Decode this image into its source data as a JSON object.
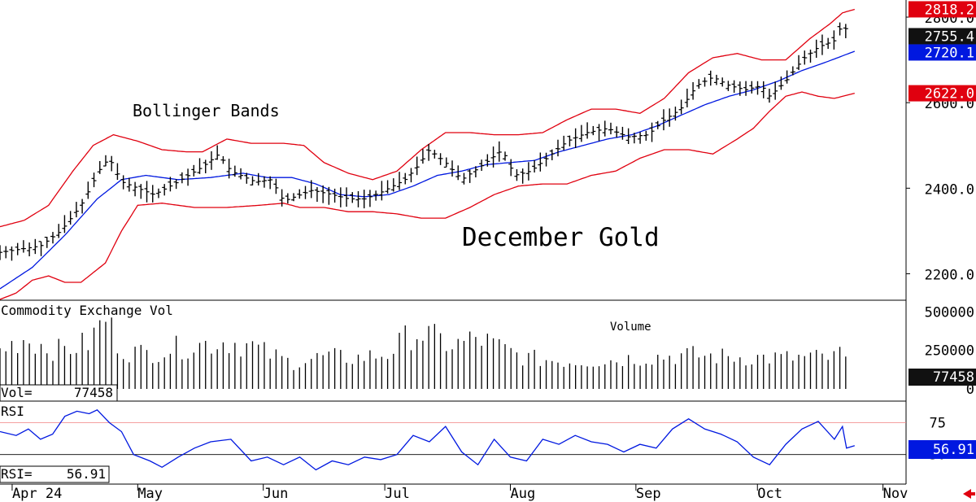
{
  "chart_data": {
    "type": "ohlc",
    "title": "December Gold",
    "annotation": "Bollinger Bands",
    "x_months": [
      {
        "label": "Apr 24",
        "day": 3
      },
      {
        "label": "May",
        "day": 34
      },
      {
        "label": "Jun",
        "day": 65
      },
      {
        "label": "Jul",
        "day": 95
      },
      {
        "label": "Aug",
        "day": 126
      },
      {
        "label": "Sep",
        "day": 157
      },
      {
        "label": "Oct",
        "day": 187
      },
      {
        "label": "Nov",
        "day": 218
      }
    ],
    "price_axis": {
      "ticks": [
        "2200.0",
        "2400.0",
        "2600.0",
        "2800.0"
      ],
      "tick_values": [
        2200,
        2400,
        2600,
        2800
      ],
      "ylim": [
        2140,
        2840
      ]
    },
    "price_labels": {
      "upper": "2818.2",
      "last": "2755.4",
      "middle": "2720.1",
      "lower": "2622.0"
    },
    "price_label_values": {
      "upper": 2818.2,
      "last": 2755.4,
      "middle": 2720.1,
      "lower": 2622.0
    },
    "colors": {
      "upper_band": "#e0000f",
      "lower_band": "#e0000f",
      "middle_band": "#0018e0",
      "bars": "#000000",
      "rsi_line": "#0018e0",
      "rsi_guide": "#f08080",
      "last_box": "#111111",
      "rsi_box": "#0018e0",
      "arrow": "#e0000f"
    },
    "price_points": [
      {
        "x": 0,
        "y": 2250
      },
      {
        "x": 10,
        "y": 2265
      },
      {
        "x": 15,
        "y": 2300
      },
      {
        "x": 20,
        "y": 2360
      },
      {
        "x": 25,
        "y": 2450
      },
      {
        "x": 27,
        "y": 2470
      },
      {
        "x": 30,
        "y": 2415
      },
      {
        "x": 34,
        "y": 2400
      },
      {
        "x": 38,
        "y": 2385
      },
      {
        "x": 43,
        "y": 2410
      },
      {
        "x": 50,
        "y": 2450
      },
      {
        "x": 54,
        "y": 2480
      },
      {
        "x": 57,
        "y": 2440
      },
      {
        "x": 63,
        "y": 2415
      },
      {
        "x": 67,
        "y": 2420
      },
      {
        "x": 70,
        "y": 2370
      },
      {
        "x": 77,
        "y": 2395
      },
      {
        "x": 82,
        "y": 2385
      },
      {
        "x": 86,
        "y": 2375
      },
      {
        "x": 90,
        "y": 2375
      },
      {
        "x": 94,
        "y": 2390
      },
      {
        "x": 100,
        "y": 2420
      },
      {
        "x": 103,
        "y": 2450
      },
      {
        "x": 106,
        "y": 2490
      },
      {
        "x": 110,
        "y": 2460
      },
      {
        "x": 114,
        "y": 2420
      },
      {
        "x": 120,
        "y": 2460
      },
      {
        "x": 124,
        "y": 2490
      },
      {
        "x": 127,
        "y": 2430
      },
      {
        "x": 131,
        "y": 2440
      },
      {
        "x": 135,
        "y": 2470
      },
      {
        "x": 140,
        "y": 2510
      },
      {
        "x": 145,
        "y": 2530
      },
      {
        "x": 150,
        "y": 2540
      },
      {
        "x": 155,
        "y": 2520
      },
      {
        "x": 160,
        "y": 2525
      },
      {
        "x": 164,
        "y": 2560
      },
      {
        "x": 168,
        "y": 2585
      },
      {
        "x": 172,
        "y": 2640
      },
      {
        "x": 176,
        "y": 2660
      },
      {
        "x": 180,
        "y": 2640
      },
      {
        "x": 184,
        "y": 2630
      },
      {
        "x": 188,
        "y": 2640
      },
      {
        "x": 190,
        "y": 2615
      },
      {
        "x": 194,
        "y": 2650
      },
      {
        "x": 198,
        "y": 2700
      },
      {
        "x": 202,
        "y": 2730
      },
      {
        "x": 206,
        "y": 2745
      },
      {
        "x": 208,
        "y": 2785
      },
      {
        "x": 210,
        "y": 2755
      }
    ],
    "upper_band": [
      {
        "x": 0,
        "y": 2310
      },
      {
        "x": 6,
        "y": 2325
      },
      {
        "x": 12,
        "y": 2360
      },
      {
        "x": 18,
        "y": 2440
      },
      {
        "x": 23,
        "y": 2500
      },
      {
        "x": 28,
        "y": 2525
      },
      {
        "x": 34,
        "y": 2510
      },
      {
        "x": 40,
        "y": 2490
      },
      {
        "x": 46,
        "y": 2485
      },
      {
        "x": 50,
        "y": 2485
      },
      {
        "x": 56,
        "y": 2515
      },
      {
        "x": 62,
        "y": 2505
      },
      {
        "x": 70,
        "y": 2505
      },
      {
        "x": 75,
        "y": 2500
      },
      {
        "x": 80,
        "y": 2460
      },
      {
        "x": 86,
        "y": 2435
      },
      {
        "x": 92,
        "y": 2420
      },
      {
        "x": 98,
        "y": 2440
      },
      {
        "x": 104,
        "y": 2490
      },
      {
        "x": 110,
        "y": 2530
      },
      {
        "x": 116,
        "y": 2530
      },
      {
        "x": 122,
        "y": 2525
      },
      {
        "x": 128,
        "y": 2525
      },
      {
        "x": 134,
        "y": 2530
      },
      {
        "x": 140,
        "y": 2560
      },
      {
        "x": 146,
        "y": 2585
      },
      {
        "x": 152,
        "y": 2585
      },
      {
        "x": 158,
        "y": 2575
      },
      {
        "x": 164,
        "y": 2610
      },
      {
        "x": 170,
        "y": 2670
      },
      {
        "x": 176,
        "y": 2705
      },
      {
        "x": 182,
        "y": 2715
      },
      {
        "x": 188,
        "y": 2700
      },
      {
        "x": 194,
        "y": 2700
      },
      {
        "x": 200,
        "y": 2750
      },
      {
        "x": 205,
        "y": 2785
      },
      {
        "x": 208,
        "y": 2810
      },
      {
        "x": 211,
        "y": 2818.2
      }
    ],
    "middle_band": [
      {
        "x": 0,
        "y": 2165
      },
      {
        "x": 8,
        "y": 2215
      },
      {
        "x": 16,
        "y": 2290
      },
      {
        "x": 24,
        "y": 2375
      },
      {
        "x": 30,
        "y": 2420
      },
      {
        "x": 36,
        "y": 2430
      },
      {
        "x": 44,
        "y": 2420
      },
      {
        "x": 52,
        "y": 2425
      },
      {
        "x": 60,
        "y": 2435
      },
      {
        "x": 66,
        "y": 2425
      },
      {
        "x": 72,
        "y": 2425
      },
      {
        "x": 78,
        "y": 2410
      },
      {
        "x": 84,
        "y": 2385
      },
      {
        "x": 90,
        "y": 2380
      },
      {
        "x": 96,
        "y": 2385
      },
      {
        "x": 102,
        "y": 2405
      },
      {
        "x": 108,
        "y": 2430
      },
      {
        "x": 114,
        "y": 2440
      },
      {
        "x": 120,
        "y": 2455
      },
      {
        "x": 126,
        "y": 2460
      },
      {
        "x": 132,
        "y": 2465
      },
      {
        "x": 138,
        "y": 2485
      },
      {
        "x": 144,
        "y": 2500
      },
      {
        "x": 150,
        "y": 2515
      },
      {
        "x": 156,
        "y": 2525
      },
      {
        "x": 162,
        "y": 2545
      },
      {
        "x": 168,
        "y": 2570
      },
      {
        "x": 174,
        "y": 2595
      },
      {
        "x": 180,
        "y": 2615
      },
      {
        "x": 186,
        "y": 2630
      },
      {
        "x": 192,
        "y": 2650
      },
      {
        "x": 198,
        "y": 2675
      },
      {
        "x": 204,
        "y": 2695
      },
      {
        "x": 211,
        "y": 2720.1
      }
    ],
    "lower_band": [
      {
        "x": 0,
        "y": 2140
      },
      {
        "x": 4,
        "y": 2155
      },
      {
        "x": 8,
        "y": 2185
      },
      {
        "x": 12,
        "y": 2195
      },
      {
        "x": 16,
        "y": 2180
      },
      {
        "x": 20,
        "y": 2180
      },
      {
        "x": 26,
        "y": 2225
      },
      {
        "x": 30,
        "y": 2300
      },
      {
        "x": 34,
        "y": 2360
      },
      {
        "x": 40,
        "y": 2365
      },
      {
        "x": 48,
        "y": 2355
      },
      {
        "x": 56,
        "y": 2355
      },
      {
        "x": 64,
        "y": 2360
      },
      {
        "x": 70,
        "y": 2365
      },
      {
        "x": 74,
        "y": 2355
      },
      {
        "x": 80,
        "y": 2355
      },
      {
        "x": 86,
        "y": 2345
      },
      {
        "x": 92,
        "y": 2345
      },
      {
        "x": 98,
        "y": 2340
      },
      {
        "x": 104,
        "y": 2330
      },
      {
        "x": 110,
        "y": 2330
      },
      {
        "x": 116,
        "y": 2355
      },
      {
        "x": 122,
        "y": 2385
      },
      {
        "x": 128,
        "y": 2405
      },
      {
        "x": 134,
        "y": 2410
      },
      {
        "x": 140,
        "y": 2410
      },
      {
        "x": 146,
        "y": 2430
      },
      {
        "x": 152,
        "y": 2440
      },
      {
        "x": 158,
        "y": 2470
      },
      {
        "x": 164,
        "y": 2490
      },
      {
        "x": 170,
        "y": 2490
      },
      {
        "x": 176,
        "y": 2480
      },
      {
        "x": 182,
        "y": 2515
      },
      {
        "x": 186,
        "y": 2540
      },
      {
        "x": 190,
        "y": 2580
      },
      {
        "x": 194,
        "y": 2615
      },
      {
        "x": 198,
        "y": 2625
      },
      {
        "x": 202,
        "y": 2615
      },
      {
        "x": 206,
        "y": 2610
      },
      {
        "x": 211,
        "y": 2622
      }
    ],
    "volume": {
      "title": "Commodity Exchange Vol",
      "label": "Volume",
      "ticks": [
        "500000",
        "250000",
        "0"
      ],
      "tick_values": [
        500000,
        250000,
        0
      ],
      "ylim": [
        0,
        560000
      ],
      "readout_label": "Vol=",
      "last": "77458",
      "points": [
        {
          "x": 0,
          "y": 250000
        },
        {
          "x": 6,
          "y": 330000
        },
        {
          "x": 10,
          "y": 290000
        },
        {
          "x": 14,
          "y": 250000
        },
        {
          "x": 18,
          "y": 270000
        },
        {
          "x": 22,
          "y": 300000
        },
        {
          "x": 26,
          "y": 470000
        },
        {
          "x": 30,
          "y": 250000
        },
        {
          "x": 36,
          "y": 230000
        },
        {
          "x": 42,
          "y": 260000
        },
        {
          "x": 50,
          "y": 290000
        },
        {
          "x": 56,
          "y": 310000
        },
        {
          "x": 62,
          "y": 280000
        },
        {
          "x": 66,
          "y": 230000
        },
        {
          "x": 72,
          "y": 170000
        },
        {
          "x": 80,
          "y": 210000
        },
        {
          "x": 88,
          "y": 200000
        },
        {
          "x": 96,
          "y": 230000
        },
        {
          "x": 102,
          "y": 370000
        },
        {
          "x": 106,
          "y": 340000
        },
        {
          "x": 112,
          "y": 280000
        },
        {
          "x": 118,
          "y": 330000
        },
        {
          "x": 124,
          "y": 260000
        },
        {
          "x": 130,
          "y": 200000
        },
        {
          "x": 140,
          "y": 180000
        },
        {
          "x": 150,
          "y": 185000
        },
        {
          "x": 156,
          "y": 200000
        },
        {
          "x": 162,
          "y": 210000
        },
        {
          "x": 170,
          "y": 220000
        },
        {
          "x": 178,
          "y": 210000
        },
        {
          "x": 186,
          "y": 205000
        },
        {
          "x": 194,
          "y": 200000
        },
        {
          "x": 200,
          "y": 205000
        },
        {
          "x": 206,
          "y": 200000
        },
        {
          "x": 208,
          "y": 260000
        },
        {
          "x": 210,
          "y": 77458
        }
      ]
    },
    "rsi": {
      "title": "RSI",
      "ticks": [
        "75",
        "50"
      ],
      "tick_values": [
        75,
        50
      ],
      "ylim": [
        30,
        90
      ],
      "readout_label": "RSI=",
      "last": "56.91",
      "points": [
        {
          "x": 0,
          "y": 68
        },
        {
          "x": 4,
          "y": 65
        },
        {
          "x": 7,
          "y": 70
        },
        {
          "x": 10,
          "y": 62
        },
        {
          "x": 13,
          "y": 66
        },
        {
          "x": 16,
          "y": 80
        },
        {
          "x": 19,
          "y": 84
        },
        {
          "x": 22,
          "y": 82
        },
        {
          "x": 24,
          "y": 85
        },
        {
          "x": 27,
          "y": 75
        },
        {
          "x": 30,
          "y": 68
        },
        {
          "x": 33,
          "y": 50
        },
        {
          "x": 37,
          "y": 45
        },
        {
          "x": 40,
          "y": 40
        },
        {
          "x": 44,
          "y": 48
        },
        {
          "x": 48,
          "y": 55
        },
        {
          "x": 52,
          "y": 60
        },
        {
          "x": 57,
          "y": 62
        },
        {
          "x": 62,
          "y": 45
        },
        {
          "x": 66,
          "y": 48
        },
        {
          "x": 70,
          "y": 42
        },
        {
          "x": 74,
          "y": 48
        },
        {
          "x": 78,
          "y": 38
        },
        {
          "x": 82,
          "y": 45
        },
        {
          "x": 86,
          "y": 42
        },
        {
          "x": 90,
          "y": 48
        },
        {
          "x": 94,
          "y": 46
        },
        {
          "x": 98,
          "y": 50
        },
        {
          "x": 102,
          "y": 65
        },
        {
          "x": 106,
          "y": 60
        },
        {
          "x": 110,
          "y": 72
        },
        {
          "x": 114,
          "y": 52
        },
        {
          "x": 118,
          "y": 42
        },
        {
          "x": 122,
          "y": 62
        },
        {
          "x": 126,
          "y": 48
        },
        {
          "x": 130,
          "y": 45
        },
        {
          "x": 134,
          "y": 62
        },
        {
          "x": 138,
          "y": 58
        },
        {
          "x": 142,
          "y": 65
        },
        {
          "x": 146,
          "y": 60
        },
        {
          "x": 150,
          "y": 58
        },
        {
          "x": 154,
          "y": 52
        },
        {
          "x": 158,
          "y": 58
        },
        {
          "x": 162,
          "y": 55
        },
        {
          "x": 166,
          "y": 70
        },
        {
          "x": 170,
          "y": 78
        },
        {
          "x": 174,
          "y": 70
        },
        {
          "x": 178,
          "y": 66
        },
        {
          "x": 182,
          "y": 60
        },
        {
          "x": 186,
          "y": 48
        },
        {
          "x": 190,
          "y": 42
        },
        {
          "x": 194,
          "y": 58
        },
        {
          "x": 198,
          "y": 70
        },
        {
          "x": 202,
          "y": 76
        },
        {
          "x": 206,
          "y": 62
        },
        {
          "x": 208,
          "y": 72
        },
        {
          "x": 209,
          "y": 55
        },
        {
          "x": 211,
          "y": 56.91
        }
      ]
    }
  }
}
